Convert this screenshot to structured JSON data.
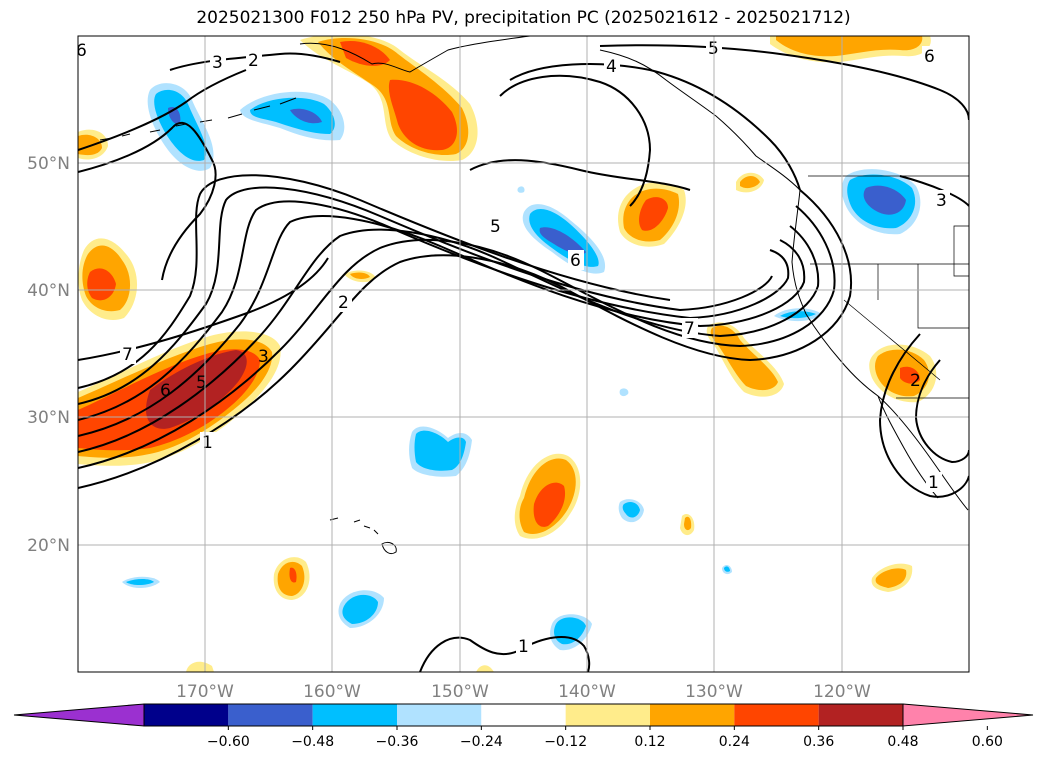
{
  "title": "2025021300 F012 250 hPa PV, precipitation PC (2025021612 - 2025021712)",
  "map": {
    "lon_range": [
      -180,
      -110
    ],
    "lat_range": [
      10,
      60
    ],
    "lat_ticks": [
      "50°N",
      "40°N",
      "30°N",
      "20°N"
    ],
    "lon_ticks": [
      "170°W",
      "160°W",
      "150°W",
      "140°W",
      "130°W",
      "120°W"
    ],
    "gridlines": true
  },
  "pv_contour_labels": [
    "6",
    "3",
    "2",
    "5",
    "4",
    "5",
    "6",
    "7",
    "2",
    "7",
    "6",
    "5",
    "3",
    "1",
    "1",
    "6",
    "3",
    "2",
    "1"
  ],
  "colorbar": {
    "tick_labels": [
      "−0.60",
      "−0.48",
      "−0.36",
      "−0.24",
      "−0.12",
      "0.12",
      "0.24",
      "0.36",
      "0.48",
      "0.60"
    ],
    "colors": [
      "#9b30d0",
      "#00008b",
      "#3a5fcd",
      "#00bfff",
      "#b0e2ff",
      "#ffffff",
      "#ffec8b",
      "#ffa500",
      "#ff4500",
      "#b22222",
      "#ff82ab"
    ]
  },
  "shading_colors": {
    "neg_light": "#b0e2ff",
    "neg_mid": "#00bfff",
    "neg_strong": "#3a5fcd",
    "pos_light": "#ffec8b",
    "pos_mid": "#ffa500",
    "pos_strong": "#ff4500",
    "pos_max": "#b22222"
  }
}
